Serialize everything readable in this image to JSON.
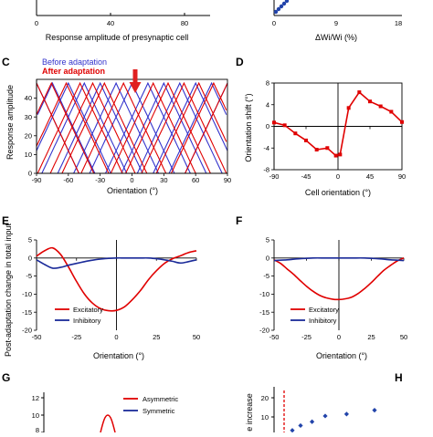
{
  "top_partial": {
    "left_xlabel": "Response amplitude of presynaptic cell",
    "left_ticks": [
      "0",
      "40",
      "80"
    ],
    "right_xlabel": "ΔWi/Wi (%)",
    "right_ticks": [
      "0",
      "9",
      "18"
    ]
  },
  "panel_labels": {
    "c": "C",
    "d": "D",
    "e": "E",
    "f": "F",
    "g": "G",
    "h": "H"
  },
  "chart_data": [
    {
      "id": "C",
      "type": "line",
      "legend": [
        {
          "name": "Before adaptation",
          "color": "#3333cc"
        },
        {
          "name": "After adaptation",
          "color": "#e00000"
        }
      ],
      "xlabel": "Orientation (°)",
      "ylabel": "Response amplitude",
      "xlim": [
        -90,
        90
      ],
      "ylim": [
        0,
        50
      ],
      "xticks": [
        "-90",
        "-60",
        "-30",
        "0",
        "30",
        "60",
        "90"
      ],
      "yticks": [
        "0",
        "10",
        "20",
        "30",
        "40"
      ],
      "tuning_curve": {
        "peak": 48,
        "half_width": 40,
        "centers_step": 15
      },
      "before_centers": [
        -90,
        -75,
        -60,
        -45,
        -30,
        -15,
        0,
        15,
        30,
        45,
        60,
        75,
        90
      ],
      "after_centers": [
        -90,
        -76,
        -62,
        -49,
        -37,
        -26,
        -8,
        20,
        34,
        49,
        63,
        77,
        90
      ],
      "adaptation_orientation": 0
    },
    {
      "id": "D",
      "type": "line",
      "xlabel": "Cell orientation (°)",
      "ylabel": "Orientation shift (°)",
      "xlim": [
        -90,
        90
      ],
      "ylim": [
        -8,
        8
      ],
      "xticks": [
        "-90",
        "-45",
        "0",
        "45",
        "90"
      ],
      "yticks": [
        "8",
        "4",
        "0",
        "-4",
        "-8"
      ],
      "series": [
        {
          "color": "#e00000",
          "x": [
            -90,
            -75,
            -60,
            -45,
            -30,
            -15,
            -3,
            3,
            15,
            30,
            45,
            60,
            75,
            90
          ],
          "y": [
            0.7,
            0.2,
            -1.3,
            -2.6,
            -4.3,
            -4.0,
            -5.4,
            -5.2,
            3.4,
            6.3,
            4.6,
            3.7,
            2.7,
            0.8
          ]
        }
      ]
    },
    {
      "id": "E",
      "type": "line",
      "xlabel": "Orientation (°)",
      "ylabel": "Post-adaptation change in total input",
      "xlim": [
        -50,
        50
      ],
      "ylim": [
        -20,
        5
      ],
      "xticks": [
        "-50",
        "-25",
        "0",
        "25",
        "50"
      ],
      "yticks": [
        "5",
        "0",
        "-5",
        "-10",
        "-15",
        "-20"
      ],
      "series": [
        {
          "name": "Excitatory",
          "color": "#e00000",
          "x": [
            -50,
            -45,
            -40,
            -35,
            -30,
            -25,
            -20,
            -15,
            -10,
            -5,
            0,
            5,
            10,
            15,
            20,
            25,
            30,
            35,
            40,
            45,
            50
          ],
          "y": [
            0.5,
            2.0,
            2.8,
            1.0,
            -2.5,
            -6.5,
            -10.0,
            -12.5,
            -14.0,
            -14.6,
            -14.5,
            -13.5,
            -11.5,
            -9.0,
            -6.0,
            -3.5,
            -1.5,
            -0.2,
            0.6,
            1.5,
            2.0
          ]
        },
        {
          "name": "Inhibitory",
          "color": "#1a2a99",
          "x": [
            -50,
            -45,
            -40,
            -35,
            -30,
            -25,
            -20,
            -15,
            -10,
            -5,
            0,
            5,
            10,
            15,
            20,
            25,
            30,
            35,
            40,
            45,
            50
          ],
          "y": [
            -0.5,
            -1.8,
            -2.8,
            -2.6,
            -2.0,
            -1.5,
            -1.0,
            -0.6,
            -0.3,
            -0.1,
            0,
            0,
            0,
            0,
            0,
            -0.2,
            -0.5,
            -0.9,
            -1.4,
            -1.0,
            -0.5
          ]
        }
      ]
    },
    {
      "id": "F",
      "type": "line",
      "xlabel": "Orientation (°)",
      "ylabel": "",
      "xlim": [
        -50,
        50
      ],
      "ylim": [
        -20,
        5
      ],
      "xticks": [
        "-50",
        "-25",
        "0",
        "25",
        "50"
      ],
      "yticks": [
        "5",
        "0",
        "-5",
        "-10",
        "-15",
        "-20"
      ],
      "series": [
        {
          "name": "Excitatory",
          "color": "#e00000",
          "x": [
            -50,
            -45,
            -40,
            -35,
            -30,
            -25,
            -20,
            -15,
            -10,
            -5,
            0,
            5,
            10,
            15,
            20,
            25,
            30,
            35,
            40,
            45,
            50
          ],
          "y": [
            -0.5,
            -1.5,
            -3.0,
            -4.5,
            -6.2,
            -7.8,
            -9.2,
            -10.3,
            -11.0,
            -11.4,
            -11.5,
            -11.3,
            -10.8,
            -9.8,
            -8.4,
            -6.8,
            -5.0,
            -3.3,
            -2.0,
            -0.8,
            0
          ]
        },
        {
          "name": "Inhibitory",
          "color": "#1a2a99",
          "x": [
            -50,
            -40,
            -30,
            -20,
            -10,
            0,
            10,
            20,
            30,
            40,
            50
          ],
          "y": [
            -0.7,
            -0.5,
            -0.2,
            0,
            0,
            0,
            0,
            0,
            -0.2,
            -0.5,
            -0.7
          ]
        }
      ]
    },
    {
      "id": "G",
      "type": "line",
      "xlabel": "",
      "ylabel": "",
      "ylim": [
        0,
        12
      ],
      "yticks": [
        "12",
        "10",
        "8"
      ],
      "series": [
        {
          "name": "Asymmetric",
          "color": "#e00000"
        },
        {
          "name": "Symmetric",
          "color": "#1a2a99"
        }
      ]
    },
    {
      "id": "H",
      "type": "scatter",
      "ylabel": "e increase",
      "ylim": [
        0,
        20
      ],
      "yticks": [
        "20",
        "10"
      ],
      "series": [
        {
          "color": "#2244aa",
          "x": [
            0.05,
            0.1,
            0.17,
            0.25,
            0.38,
            0.55
          ],
          "y": [
            3,
            5.5,
            7.5,
            10.5,
            11.5,
            13.5
          ]
        }
      ]
    }
  ]
}
